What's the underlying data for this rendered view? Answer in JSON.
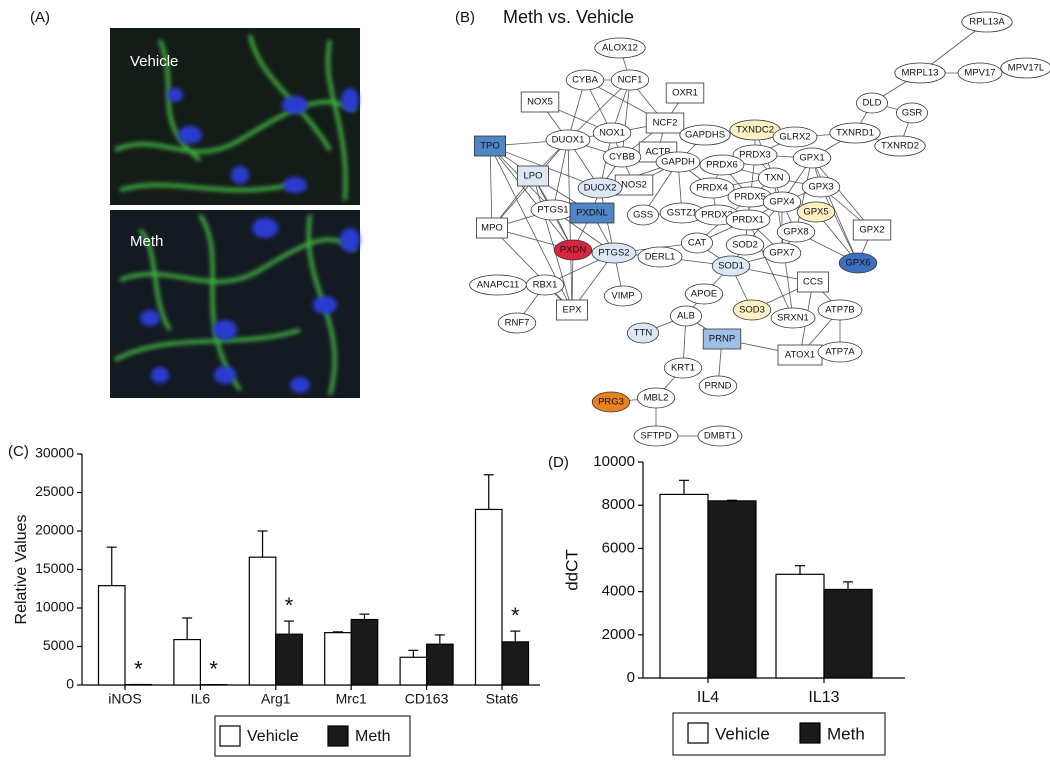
{
  "images": {
    "label": "(A)",
    "panels": [
      "Vehicle",
      "Meth"
    ]
  },
  "network": {
    "label": "(B)",
    "title": "Meth vs. Vehicle",
    "nodes": [
      {
        "label": "ALOX12",
        "shape": "ellipse",
        "fill": "#ffffff"
      },
      {
        "label": "CYBA",
        "shape": "ellipse",
        "fill": "#ffffff"
      },
      {
        "label": "NCF1",
        "shape": "ellipse",
        "fill": "#ffffff"
      },
      {
        "label": "OXR1",
        "shape": "box",
        "fill": "#ffffff"
      },
      {
        "label": "NOX5",
        "shape": "box",
        "fill": "#ffffff"
      },
      {
        "label": "NCF2",
        "shape": "box",
        "fill": "#ffffff"
      },
      {
        "label": "GAPDHS",
        "shape": "ellipse",
        "fill": "#ffffff"
      },
      {
        "label": "TXNDC2",
        "shape": "ellipse",
        "fill": "#fdf0c2"
      },
      {
        "label": "GLRX2",
        "shape": "ellipse",
        "fill": "#ffffff"
      },
      {
        "label": "TPO",
        "shape": "box",
        "fill": "#4f86c6"
      },
      {
        "label": "DUOX1",
        "shape": "ellipse",
        "fill": "#ffffff"
      },
      {
        "label": "NOX1",
        "shape": "ellipse",
        "fill": "#ffffff"
      },
      {
        "label": "ACTB",
        "shape": "box",
        "fill": "#ffffff"
      },
      {
        "label": "PRDX3",
        "shape": "ellipse",
        "fill": "#ffffff"
      },
      {
        "label": "GPX1",
        "shape": "ellipse",
        "fill": "#ffffff"
      },
      {
        "label": "TXNRD1",
        "shape": "ellipse",
        "fill": "#ffffff"
      },
      {
        "label": "DLD",
        "shape": "ellipse",
        "fill": "#ffffff"
      },
      {
        "label": "GSR",
        "shape": "ellipse",
        "fill": "#ffffff"
      },
      {
        "label": "TXNRD2",
        "shape": "ellipse",
        "fill": "#ffffff"
      },
      {
        "label": "RPL13A",
        "shape": "ellipse",
        "fill": "#ffffff"
      },
      {
        "label": "MRPL13",
        "shape": "ellipse",
        "fill": "#ffffff"
      },
      {
        "label": "MPV17",
        "shape": "ellipse",
        "fill": "#ffffff"
      },
      {
        "label": "MPV17L",
        "shape": "ellipse",
        "fill": "#ffffff"
      },
      {
        "label": "LPO",
        "shape": "box",
        "fill": "#dce8f6"
      },
      {
        "label": "CYBB",
        "shape": "ellipse",
        "fill": "#ffffff"
      },
      {
        "label": "NOS2",
        "shape": "box",
        "fill": "#ffffff"
      },
      {
        "label": "DUOX2",
        "shape": "ellipse",
        "fill": "#dce8f6"
      },
      {
        "label": "GAPDH",
        "shape": "ellipse",
        "fill": "#ffffff"
      },
      {
        "label": "PRDX6",
        "shape": "ellipse",
        "fill": "#ffffff"
      },
      {
        "label": "TXN",
        "shape": "ellipse",
        "fill": "#ffffff"
      },
      {
        "label": "PRDX4",
        "shape": "ellipse",
        "fill": "#ffffff"
      },
      {
        "label": "PRDX5",
        "shape": "ellipse",
        "fill": "#ffffff"
      },
      {
        "label": "GPX3",
        "shape": "ellipse",
        "fill": "#ffffff"
      },
      {
        "label": "GPX4",
        "shape": "ellipse",
        "fill": "#ffffff"
      },
      {
        "label": "GPX5",
        "shape": "ellipse",
        "fill": "#fdf0c2"
      },
      {
        "label": "PTGS1",
        "shape": "ellipse",
        "fill": "#ffffff"
      },
      {
        "label": "PXDNL",
        "shape": "box",
        "fill": "#4f86c6"
      },
      {
        "label": "GSS",
        "shape": "ellipse",
        "fill": "#ffffff"
      },
      {
        "label": "GSTZ1",
        "shape": "ellipse",
        "fill": "#ffffff"
      },
      {
        "label": "PRDX2",
        "shape": "ellipse",
        "fill": "#ffffff"
      },
      {
        "label": "PRDX1",
        "shape": "ellipse",
        "fill": "#ffffff"
      },
      {
        "label": "GPX8",
        "shape": "ellipse",
        "fill": "#ffffff"
      },
      {
        "label": "GPX2",
        "shape": "box",
        "fill": "#ffffff"
      },
      {
        "label": "MPO",
        "shape": "box",
        "fill": "#ffffff"
      },
      {
        "label": "PXDN",
        "shape": "ellipse",
        "fill": "#d7263d"
      },
      {
        "label": "PTGS2",
        "shape": "ellipse",
        "fill": "#dce8f6"
      },
      {
        "label": "DERL1",
        "shape": "ellipse",
        "fill": "#ffffff"
      },
      {
        "label": "CAT",
        "shape": "ellipse",
        "fill": "#ffffff"
      },
      {
        "label": "SOD2",
        "shape": "ellipse",
        "fill": "#ffffff"
      },
      {
        "label": "SOD1",
        "shape": "ellipse",
        "fill": "#dce8f6"
      },
      {
        "label": "GPX7",
        "shape": "ellipse",
        "fill": "#ffffff"
      },
      {
        "label": "GPX6",
        "shape": "ellipse",
        "fill": "#3f6fbf"
      },
      {
        "label": "ANAPC11",
        "shape": "ellipse",
        "fill": "#ffffff"
      },
      {
        "label": "RBX1",
        "shape": "ellipse",
        "fill": "#ffffff"
      },
      {
        "label": "EPX",
        "shape": "box",
        "fill": "#ffffff"
      },
      {
        "label": "VIMP",
        "shape": "ellipse",
        "fill": "#ffffff"
      },
      {
        "label": "APOE",
        "shape": "ellipse",
        "fill": "#ffffff"
      },
      {
        "label": "CCS",
        "shape": "box",
        "fill": "#ffffff"
      },
      {
        "label": "ATP7B",
        "shape": "ellipse",
        "fill": "#ffffff"
      },
      {
        "label": "SOD3",
        "shape": "ellipse",
        "fill": "#fdf0c2"
      },
      {
        "label": "SRXN1",
        "shape": "ellipse",
        "fill": "#ffffff"
      },
      {
        "label": "RNF7",
        "shape": "ellipse",
        "fill": "#ffffff"
      },
      {
        "label": "ALB",
        "shape": "ellipse",
        "fill": "#ffffff"
      },
      {
        "label": "TTN",
        "shape": "ellipse",
        "fill": "#dce8f6"
      },
      {
        "label": "PRNP",
        "shape": "box",
        "fill": "#9fc0e6"
      },
      {
        "label": "ATOX1",
        "shape": "box",
        "fill": "#ffffff"
      },
      {
        "label": "ATP7A",
        "shape": "ellipse",
        "fill": "#ffffff"
      },
      {
        "label": "KRT1",
        "shape": "ellipse",
        "fill": "#ffffff"
      },
      {
        "label": "PRND",
        "shape": "ellipse",
        "fill": "#ffffff"
      },
      {
        "label": "PRG3",
        "shape": "ellipse",
        "fill": "#e8821e"
      },
      {
        "label": "MBL2",
        "shape": "ellipse",
        "fill": "#ffffff"
      },
      {
        "label": "SFTPD",
        "shape": "ellipse",
        "fill": "#ffffff"
      },
      {
        "label": "DMBT1",
        "shape": "ellipse",
        "fill": "#ffffff"
      }
    ]
  },
  "chart_data": [
    {
      "type": "bar",
      "panel_label": "(C)",
      "ylabel": "Relative Values",
      "categories": [
        "iNOS",
        "IL6",
        "Arg1",
        "Mrc1",
        "CD163",
        "Stat6"
      ],
      "series": [
        {
          "name": "Vehicle",
          "color": "#ffffff",
          "values": [
            12900,
            5900,
            16600,
            6800,
            3600,
            22800
          ],
          "errors": [
            5000,
            2800,
            3400,
            100,
            900,
            4500
          ]
        },
        {
          "name": "Meth",
          "color": "#1a1a1a",
          "values": [
            60,
            40,
            6600,
            8500,
            5300,
            5600
          ],
          "errors": [
            0,
            0,
            1700,
            700,
            1200,
            1400
          ],
          "significance": [
            "*",
            "*",
            "*",
            null,
            null,
            "*"
          ]
        }
      ],
      "ylim": [
        0,
        30000
      ],
      "yticks": [
        0,
        5000,
        10000,
        15000,
        20000,
        25000,
        30000
      ]
    },
    {
      "type": "bar",
      "panel_label": "(D)",
      "ylabel": "ddCT",
      "categories": [
        "IL4",
        "IL13"
      ],
      "series": [
        {
          "name": "Vehicle",
          "color": "#ffffff",
          "values": [
            8500,
            4800
          ],
          "errors": [
            650,
            400
          ]
        },
        {
          "name": "Meth",
          "color": "#1a1a1a",
          "values": [
            8200,
            4100
          ],
          "errors": [
            30,
            350
          ]
        }
      ],
      "ylim": [
        0,
        10000
      ],
      "yticks": [
        0,
        2000,
        4000,
        6000,
        8000,
        10000
      ]
    }
  ]
}
